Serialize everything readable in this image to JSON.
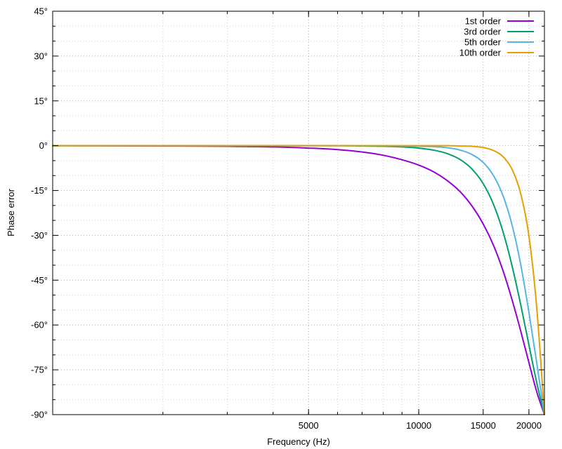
{
  "chart_data": {
    "type": "line",
    "title": "",
    "xlabel": "Frequency (Hz)",
    "ylabel": "Phase error",
    "x_scale": "log",
    "xlim": [
      1000,
      22050
    ],
    "ylim": [
      -90,
      45
    ],
    "x_ticks": [
      {
        "value": 5000,
        "label": "5000"
      },
      {
        "value": 10000,
        "label": "10000"
      },
      {
        "value": 15000,
        "label": "15000"
      },
      {
        "value": 20000,
        "label": "20000"
      }
    ],
    "y_ticks": [
      {
        "value": 45,
        "label": "45°"
      },
      {
        "value": 30,
        "label": "30°"
      },
      {
        "value": 15,
        "label": "15°"
      },
      {
        "value": 0,
        "label": "0°"
      },
      {
        "value": -15,
        "label": "-15°"
      },
      {
        "value": -30,
        "label": "-30°"
      },
      {
        "value": -45,
        "label": "-45°"
      },
      {
        "value": -60,
        "label": "-60°"
      },
      {
        "value": -75,
        "label": "-75°"
      },
      {
        "value": -90,
        "label": "-90°"
      }
    ],
    "grid": true,
    "legend_position": "top-right",
    "series": [
      {
        "name": "1st order",
        "color": "#9400d3",
        "x": [
          1000,
          2000,
          3000,
          4000,
          5000,
          6000,
          7000,
          8000,
          9000,
          10000,
          11000,
          12000,
          13000,
          14000,
          15000,
          16000,
          17000,
          18000,
          19000,
          20000,
          21000,
          22050
        ],
        "y": [
          0,
          -0.1,
          -0.2,
          -0.4,
          -0.8,
          -1.3,
          -2.1,
          -3.2,
          -4.7,
          -6.5,
          -8.8,
          -11.8,
          -15.5,
          -20.3,
          -26.2,
          -33.3,
          -41.9,
          -51.7,
          -62.1,
          -72.6,
          -82.3,
          -90
        ]
      },
      {
        "name": "3rd order",
        "color": "#009e73",
        "x": [
          1000,
          2000,
          3000,
          4000,
          5000,
          6000,
          7000,
          8000,
          9000,
          10000,
          11000,
          12000,
          13000,
          14000,
          15000,
          16000,
          17000,
          18000,
          19000,
          20000,
          21000,
          22050
        ],
        "y": [
          0,
          0,
          0,
          0,
          0,
          0,
          -0.1,
          -0.2,
          -0.4,
          -0.8,
          -1.5,
          -2.7,
          -4.7,
          -7.9,
          -12.7,
          -19.6,
          -28.9,
          -40.4,
          -53.3,
          -66.7,
          -79.2,
          -90
        ]
      },
      {
        "name": "5th order",
        "color": "#56b4e9",
        "x": [
          1000,
          2000,
          3000,
          4000,
          5000,
          6000,
          7000,
          8000,
          9000,
          10000,
          11000,
          12000,
          13000,
          14000,
          15000,
          16000,
          17000,
          18000,
          19000,
          20000,
          21000,
          22050
        ],
        "y": [
          0,
          0,
          0,
          0,
          0,
          0,
          0,
          0,
          -0.1,
          -0.2,
          -0.3,
          -0.7,
          -1.5,
          -3.0,
          -5.6,
          -10.0,
          -16.8,
          -26.7,
          -39.9,
          -55.8,
          -72.6,
          -90
        ]
      },
      {
        "name": "10th order",
        "color": "#e69f00",
        "x": [
          1000,
          2000,
          3000,
          4000,
          5000,
          6000,
          7000,
          8000,
          9000,
          10000,
          11000,
          12000,
          13000,
          14000,
          15000,
          16000,
          17000,
          18000,
          19000,
          20000,
          21000,
          22050
        ],
        "y": [
          0,
          0,
          0,
          0,
          0,
          0,
          0,
          0,
          0,
          0,
          0,
          0,
          -0.1,
          -0.2,
          -0.6,
          -1.6,
          -3.7,
          -8.0,
          -16.1,
          -30.2,
          -54.0,
          -90
        ]
      }
    ]
  }
}
